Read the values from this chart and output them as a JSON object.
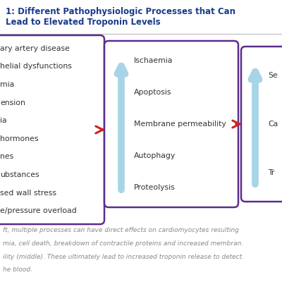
{
  "title": "1: Different Pathophysiologic Processes that Can\nLead to Elevated Troponin Levels",
  "title_color": "#1a3a8a",
  "bg_color": "#ffffff",
  "box_border_color": "#5b2d8e",
  "box_bg_color": "#ffffff",
  "arrow_color": "#cc2222",
  "up_arrow_color": "#a8d4e8",
  "left_box_items": [
    "ary artery disease",
    "helial dysfunctions",
    "mia",
    "ension",
    "ia",
    "hormones",
    "nes",
    "ubstances",
    "sed wall stress",
    "e/pressure overload"
  ],
  "middle_box_items": [
    "Ischaemia",
    "Apoptosis",
    "Membrane permeability",
    "Autophagy",
    "Proteolysis"
  ],
  "right_box_items": [
    "Se",
    "Ca",
    "Tr"
  ],
  "caption_lines": [
    "ft, multiple processes can have direct effects on cardiomyocytes resulting",
    "mia, cell death, breakdown of contractile proteins and increased membran.",
    "ility (middle). These ultimately lead to increased troponin release to detect.",
    "he blood."
  ],
  "caption_color": "#888888",
  "caption_fontsize": 6.5,
  "text_color": "#333333",
  "text_fontsize": 7.8
}
